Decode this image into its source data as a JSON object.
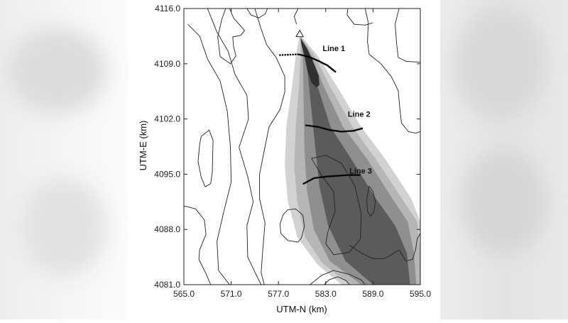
{
  "chart_data": {
    "type": "contour",
    "xlabel": "UTM-N (km)",
    "ylabel": "UTM-E (km)",
    "xlim": [
      565.0,
      595.0
    ],
    "ylim": [
      4081.0,
      4116.0
    ],
    "xticks": [
      565.0,
      571.0,
      577.0,
      583.0,
      589.0,
      595.0
    ],
    "yticks": [
      4081.0,
      4088.0,
      4095.0,
      4102.0,
      4109.0,
      4116.0
    ],
    "xtick_labels": [
      "565.0",
      "571.0",
      "577.0",
      "583.0",
      "589.0",
      "595.0"
    ],
    "ytick_labels": [
      "4081.0",
      "4088.0",
      "4095.0",
      "4102.0",
      "4109.0",
      "4116.0"
    ],
    "source_marker": {
      "x": 579.7,
      "y": 4112.7,
      "symbol": "triangle"
    },
    "plume_shades": [
      "#d2d2d2",
      "#b6b6b6",
      "#8f8f8f",
      "#5b5b5b",
      "#303030"
    ],
    "plume_levels": [
      [
        [
          579.7,
          4112.7
        ],
        [
          582.0,
          4110.0
        ],
        [
          584.5,
          4106.0
        ],
        [
          587.5,
          4101.0
        ],
        [
          590.5,
          4097.0
        ],
        [
          593.8,
          4092.0
        ],
        [
          595.0,
          4089.0
        ],
        [
          595.0,
          4081.0
        ],
        [
          585.0,
          4081.0
        ],
        [
          582.0,
          4083.5
        ],
        [
          579.4,
          4087.0
        ],
        [
          578.2,
          4091.5
        ],
        [
          577.8,
          4096.0
        ],
        [
          578.0,
          4101.0
        ],
        [
          578.7,
          4106.0
        ],
        [
          579.2,
          4110.0
        ]
      ],
      [
        [
          579.8,
          4112.5
        ],
        [
          581.6,
          4110.0
        ],
        [
          583.6,
          4106.0
        ],
        [
          586.4,
          4101.0
        ],
        [
          589.3,
          4097.0
        ],
        [
          592.6,
          4092.0
        ],
        [
          594.6,
          4089.0
        ],
        [
          595.0,
          4085.0
        ],
        [
          595.0,
          4081.0
        ],
        [
          586.0,
          4081.0
        ],
        [
          582.5,
          4083.8
        ],
        [
          580.4,
          4087.0
        ],
        [
          579.4,
          4091.5
        ],
        [
          579.0,
          4096.0
        ],
        [
          579.2,
          4101.0
        ],
        [
          579.6,
          4106.0
        ],
        [
          579.8,
          4110.0
        ]
      ],
      [
        [
          579.8,
          4112.4
        ],
        [
          581.2,
          4110.0
        ],
        [
          582.8,
          4106.0
        ],
        [
          585.2,
          4101.0
        ],
        [
          588.2,
          4097.0
        ],
        [
          591.4,
          4092.0
        ],
        [
          593.4,
          4089.0
        ],
        [
          594.2,
          4085.0
        ],
        [
          594.5,
          4081.0
        ],
        [
          587.5,
          4081.0
        ],
        [
          583.5,
          4084.0
        ],
        [
          581.5,
          4088.0
        ],
        [
          580.6,
          4093.0
        ],
        [
          580.3,
          4098.0
        ],
        [
          580.2,
          4104.0
        ],
        [
          580.1,
          4110.0
        ]
      ],
      [
        [
          579.8,
          4112.3
        ],
        [
          580.9,
          4110.0
        ],
        [
          582.0,
          4106.0
        ],
        [
          583.6,
          4101.0
        ],
        [
          586.2,
          4097.0
        ],
        [
          589.3,
          4092.0
        ],
        [
          591.8,
          4088.5
        ],
        [
          593.3,
          4085.0
        ],
        [
          593.7,
          4081.0
        ],
        [
          589.0,
          4081.0
        ],
        [
          585.5,
          4084.0
        ],
        [
          583.3,
          4088.5
        ],
        [
          582.2,
          4093.5
        ],
        [
          581.6,
          4099.0
        ],
        [
          581.0,
          4105.0
        ],
        [
          580.5,
          4110.0
        ]
      ],
      [
        [
          579.8,
          4112.2
        ],
        [
          580.6,
          4111.0
        ],
        [
          581.5,
          4109.0
        ],
        [
          582.1,
          4107.5
        ],
        [
          582.2,
          4106.3
        ],
        [
          581.8,
          4106.0
        ],
        [
          581.2,
          4106.6
        ],
        [
          580.7,
          4108.0
        ],
        [
          580.3,
          4110.0
        ],
        [
          579.9,
          4111.5
        ]
      ]
    ],
    "terrain_contours": [
      [
        [
          565.5,
          4114.0
        ],
        [
          567.0,
          4112.5
        ],
        [
          568.0,
          4109.6
        ],
        [
          569.6,
          4106.8
        ],
        [
          570.5,
          4103.0
        ],
        [
          570.9,
          4098.5
        ],
        [
          571.0,
          4094.0
        ],
        [
          570.0,
          4090.0
        ],
        [
          569.2,
          4086.5
        ],
        [
          569.4,
          4082.8
        ],
        [
          570.8,
          4081.0
        ]
      ],
      [
        [
          568.0,
          4116.0
        ],
        [
          569.2,
          4113.0
        ],
        [
          570.6,
          4110.6
        ],
        [
          571.5,
          4107.6
        ],
        [
          573.0,
          4105.0
        ],
        [
          573.2,
          4102.0
        ],
        [
          572.0,
          4098.4
        ],
        [
          573.1,
          4094.7
        ],
        [
          573.8,
          4091.5
        ],
        [
          573.0,
          4088.5
        ],
        [
          573.1,
          4084.5
        ],
        [
          574.3,
          4082.0
        ],
        [
          574.8,
          4081.0
        ]
      ],
      [
        [
          574.0,
          4116.0
        ],
        [
          574.8,
          4113.4
        ],
        [
          575.5,
          4111.4
        ],
        [
          576.7,
          4109.8
        ],
        [
          577.8,
          4107.4
        ],
        [
          577.8,
          4105.4
        ],
        [
          577.2,
          4103.2
        ],
        [
          575.8,
          4101.0
        ],
        [
          575.2,
          4098.0
        ],
        [
          574.6,
          4095.0
        ],
        [
          574.6,
          4091.9
        ],
        [
          575.3,
          4088.8
        ],
        [
          575.0,
          4085.3
        ],
        [
          574.8,
          4082.5
        ],
        [
          575.2,
          4081.0
        ]
      ],
      [
        [
          573.0,
          4116.0
        ],
        [
          573.5,
          4115.2
        ],
        [
          574.5,
          4114.8
        ],
        [
          575.3,
          4115.3
        ],
        [
          575.6,
          4116.0
        ]
      ],
      [
        [
          570.8,
          4116.0
        ],
        [
          571.3,
          4114.8
        ],
        [
          572.1,
          4113.9
        ],
        [
          572.7,
          4113.2
        ],
        [
          572.2,
          4112.6
        ],
        [
          571.2,
          4112.4
        ],
        [
          571.3,
          4111.2
        ],
        [
          571.6,
          4110.0
        ],
        [
          570.9,
          4109.0
        ],
        [
          569.6,
          4109.9
        ],
        [
          569.3,
          4112.4
        ],
        [
          569.8,
          4114.6
        ],
        [
          570.3,
          4116.0
        ]
      ],
      [
        [
          567.2,
          4099.8
        ],
        [
          568.2,
          4100.6
        ],
        [
          568.7,
          4099.3
        ],
        [
          568.6,
          4095.2
        ],
        [
          568.4,
          4093.8
        ],
        [
          567.7,
          4093.4
        ],
        [
          567.2,
          4094.6
        ],
        [
          566.8,
          4096.6
        ],
        [
          567.0,
          4098.8
        ],
        [
          567.2,
          4099.8
        ]
      ],
      [
        [
          565.0,
          4091.0
        ],
        [
          566.5,
          4090.6
        ],
        [
          567.6,
          4089.2
        ],
        [
          567.8,
          4087.4
        ],
        [
          567.0,
          4085.4
        ],
        [
          566.9,
          4084.2
        ],
        [
          567.8,
          4082.4
        ],
        [
          568.4,
          4081.0
        ]
      ],
      [
        [
          588.0,
          4116.0
        ],
        [
          588.4,
          4114.2
        ],
        [
          588.3,
          4111.8
        ],
        [
          588.5,
          4110.2
        ],
        [
          590.0,
          4109.0
        ],
        [
          591.3,
          4107.4
        ],
        [
          592.2,
          4105.6
        ],
        [
          592.4,
          4103.4
        ],
        [
          592.6,
          4101.5
        ],
        [
          593.5,
          4100.4
        ],
        [
          594.4,
          4100.2
        ],
        [
          595.0,
          4100.4
        ]
      ],
      [
        [
          592.3,
          4116.0
        ],
        [
          591.8,
          4114.0
        ],
        [
          592.0,
          4111.5
        ],
        [
          592.2,
          4109.8
        ],
        [
          593.2,
          4109.3
        ],
        [
          595.0,
          4109.2
        ]
      ],
      [
        [
          585.8,
          4116.0
        ],
        [
          585.7,
          4115.2
        ],
        [
          586.6,
          4114.0
        ],
        [
          588.0,
          4113.9
        ],
        [
          589.0,
          4114.2
        ]
      ],
      [
        [
          579.5,
          4116.0
        ],
        [
          579.0,
          4115.0
        ],
        [
          579.3,
          4114.0
        ]
      ],
      [
        [
          581.2,
          4097.0
        ],
        [
          583.0,
          4097.4
        ],
        [
          585.0,
          4096.4
        ],
        [
          586.7,
          4093.5
        ],
        [
          587.5,
          4090.0
        ],
        [
          587.4,
          4086.8
        ],
        [
          586.0,
          4085.1
        ],
        [
          584.0,
          4084.8
        ],
        [
          583.0,
          4086.2
        ],
        [
          583.3,
          4087.8
        ],
        [
          584.2,
          4090.3
        ],
        [
          584.0,
          4092.8
        ],
        [
          582.5,
          4094.8
        ],
        [
          581.2,
          4097.0
        ]
      ],
      [
        [
          588.5,
          4093.5
        ],
        [
          589.0,
          4092.8
        ],
        [
          589.3,
          4091.5
        ],
        [
          589.1,
          4090.2
        ],
        [
          588.7,
          4089.7
        ],
        [
          588.3,
          4090.3
        ],
        [
          588.2,
          4091.8
        ],
        [
          588.5,
          4093.5
        ]
      ],
      [
        [
          578.2,
          4090.5
        ],
        [
          579.2,
          4090.6
        ],
        [
          580.1,
          4089.8
        ],
        [
          580.3,
          4088.4
        ],
        [
          579.9,
          4086.9
        ],
        [
          579.5,
          4086.4
        ],
        [
          578.2,
          4086.6
        ],
        [
          577.3,
          4087.5
        ],
        [
          577.2,
          4088.7
        ],
        [
          577.6,
          4089.9
        ],
        [
          578.2,
          4090.5
        ]
      ],
      [
        [
          586.0,
          4086.0
        ],
        [
          587.5,
          4085.0
        ],
        [
          589.0,
          4084.3
        ],
        [
          590.5,
          4084.3
        ],
        [
          592.3,
          4085.4
        ],
        [
          593.2,
          4084.0
        ],
        [
          594.0,
          4084.2
        ],
        [
          594.4,
          4085.4
        ],
        [
          594.6,
          4086.8
        ],
        [
          595.0,
          4087.5
        ]
      ],
      [
        [
          581.0,
          4081.0
        ],
        [
          582.5,
          4082.2
        ],
        [
          584.0,
          4082.8
        ],
        [
          586.0,
          4082.3
        ],
        [
          587.5,
          4081.6
        ],
        [
          588.0,
          4081.0
        ]
      ],
      [
        [
          582.8,
          4081.0
        ],
        [
          583.4,
          4081.6
        ],
        [
          584.5,
          4082.0
        ],
        [
          585.6,
          4081.5
        ],
        [
          586.0,
          4081.0
        ]
      ]
    ],
    "sampling_lines": [
      {
        "name": "Line 1",
        "label_at": [
          582.6,
          4110.6
        ],
        "points": [
          [
            577.2,
            4110.1
          ],
          [
            579.5,
            4110.2
          ],
          [
            580.8,
            4109.9
          ],
          [
            582.0,
            4109.4
          ],
          [
            583.2,
            4108.8
          ],
          [
            584.2,
            4108.0
          ]
        ]
      },
      {
        "name": "Line 2",
        "label_at": [
          585.8,
          4102.3
        ],
        "points": [
          [
            580.5,
            4101.2
          ],
          [
            582.0,
            4101.0
          ],
          [
            583.5,
            4100.6
          ],
          [
            585.0,
            4100.4
          ],
          [
            586.5,
            4100.5
          ],
          [
            587.6,
            4100.8
          ]
        ]
      },
      {
        "name": "Line 3",
        "label_at": [
          586.0,
          4095.1
        ],
        "points": [
          [
            580.2,
            4093.8
          ],
          [
            581.5,
            4094.5
          ],
          [
            583.0,
            4094.7
          ],
          [
            584.5,
            4094.8
          ],
          [
            586.0,
            4094.9
          ],
          [
            587.3,
            4094.9
          ]
        ]
      }
    ],
    "legend": "none",
    "grid": false
  }
}
